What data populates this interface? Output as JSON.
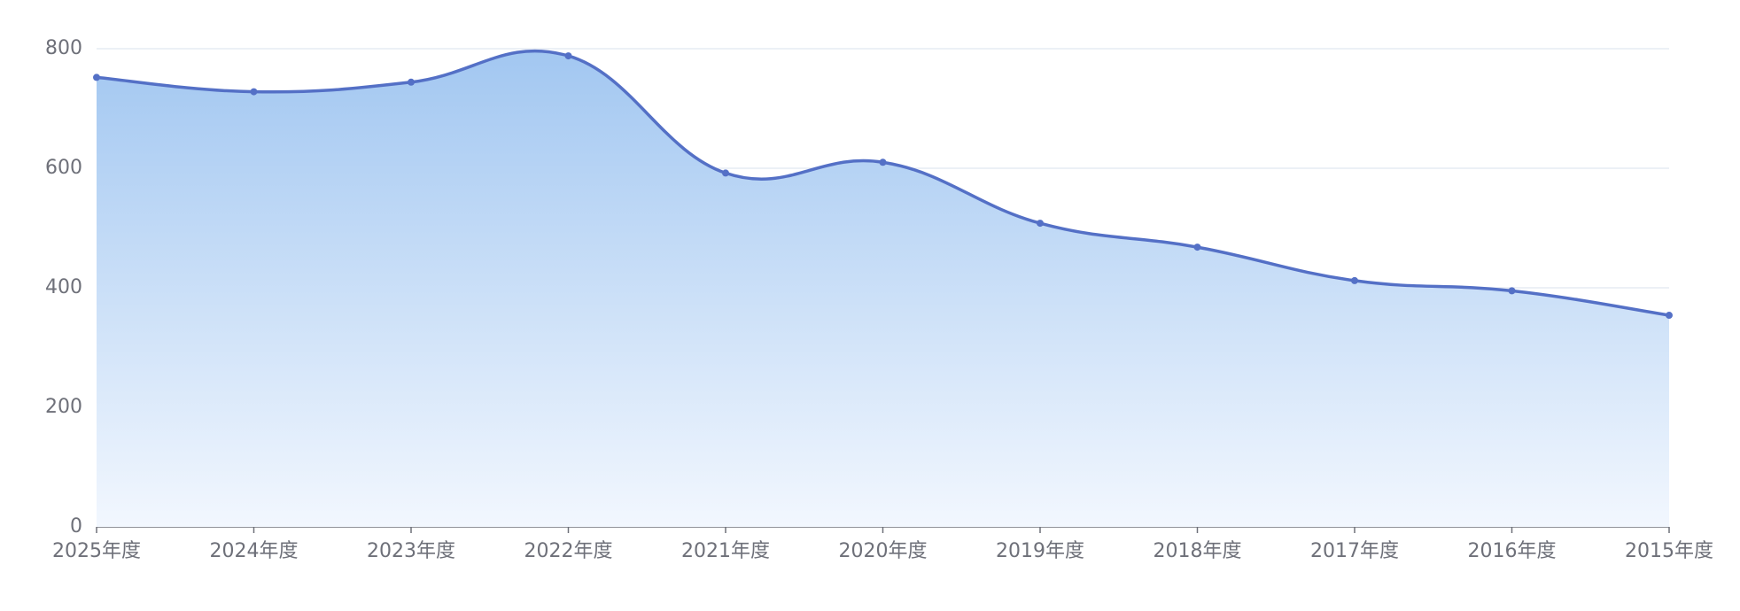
{
  "chart_data": {
    "type": "line",
    "categories": [
      "2025年度",
      "2024年度",
      "2023年度",
      "2022年度",
      "2021年度",
      "2020年度",
      "2019年度",
      "2018年度",
      "2017年度",
      "2016年度",
      "2015年度"
    ],
    "values": [
      752,
      728,
      744,
      788,
      592,
      610,
      508,
      468,
      412,
      395,
      354
    ],
    "color": "#5470c6",
    "ylim": [
      0,
      800
    ],
    "yticks": [
      0,
      200,
      400,
      600,
      800
    ],
    "grid": true,
    "smooth": true,
    "area": true
  }
}
